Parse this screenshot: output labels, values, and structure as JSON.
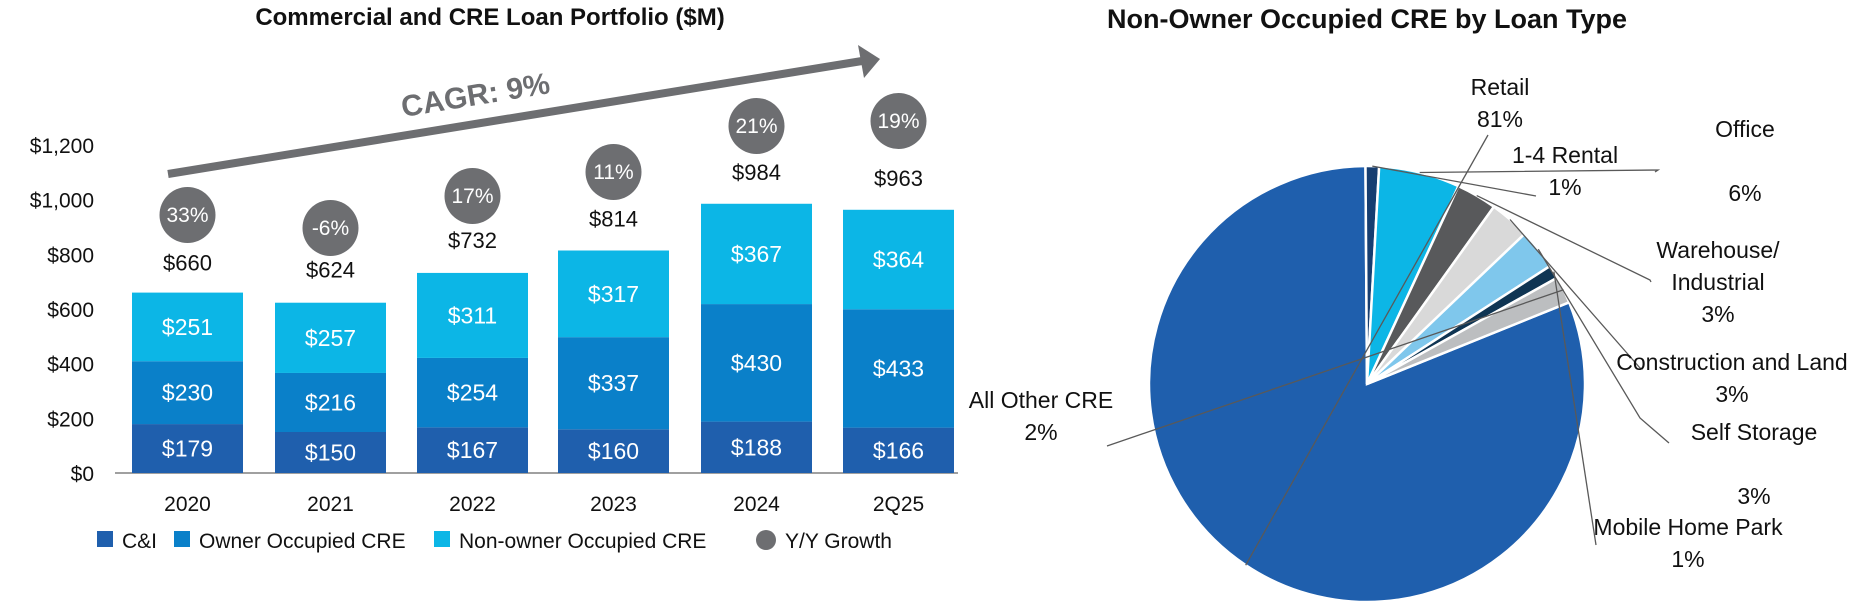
{
  "chart_data": [
    {
      "type": "bar",
      "stacked": true,
      "title": "Commercial and CRE Loan Portfolio ($M)",
      "annotation": "CAGR: 9%",
      "categories": [
        "2020",
        "2021",
        "2022",
        "2023",
        "2024",
        "2Q25"
      ],
      "series": [
        {
          "name": "C&I",
          "color": "#1f5fad",
          "values": [
            179,
            150,
            167,
            160,
            188,
            166
          ],
          "labels": [
            "$179",
            "$150",
            "$167",
            "$160",
            "$188",
            "$166"
          ]
        },
        {
          "name": "Owner Occupied CRE",
          "color": "#0a80c9",
          "values": [
            230,
            216,
            254,
            337,
            430,
            433
          ],
          "labels": [
            "$230",
            "$216",
            "$254",
            "$337",
            "$430",
            "$433"
          ]
        },
        {
          "name": "Non-owner Occupied CRE",
          "color": "#0cb6e6",
          "values": [
            251,
            257,
            311,
            317,
            367,
            364
          ],
          "labels": [
            "$251",
            "$257",
            "$311",
            "$317",
            "$367",
            "$364"
          ]
        }
      ],
      "totals": [
        660,
        624,
        732,
        814,
        984,
        963
      ],
      "total_labels": [
        "$660",
        "$624",
        "$732",
        "$814",
        "$984",
        "$963"
      ],
      "growth_series": {
        "name": "Y/Y Growth",
        "color": "#6d6e71",
        "labels": [
          "33%",
          "-6%",
          "17%",
          "11%",
          "21%",
          "19%"
        ]
      },
      "ylim": [
        0,
        1200
      ],
      "yticks": [
        0,
        200,
        400,
        600,
        800,
        1000,
        1200
      ],
      "ytick_labels": [
        "$0",
        "$200",
        "$400",
        "$600",
        "$800",
        "$1,000",
        "$1,200"
      ],
      "legend_position": "bottom"
    },
    {
      "type": "pie",
      "title": "Non-Owner Occupied CRE by Loan Type",
      "slices": [
        {
          "label": "Retail",
          "pct": "81%",
          "value": 81,
          "color": "#1f5fad"
        },
        {
          "label": "1-4 Rental",
          "pct": "1%",
          "value": 1,
          "color": "#163e71"
        },
        {
          "label": "Office",
          "pct": "6%",
          "value": 6,
          "color": "#0cb6e6"
        },
        {
          "label": "Warehouse/ Industrial",
          "pct": "3%",
          "value": 3,
          "color": "#58595b"
        },
        {
          "label": "Construction and Land",
          "pct": "3%",
          "value": 3,
          "color": "#d9d9d9"
        },
        {
          "label": "Self Storage",
          "pct": "3%",
          "value": 3,
          "color": "#7fc7ec"
        },
        {
          "label": "Mobile Home Park",
          "pct": "1%",
          "value": 1,
          "color": "#0f3553"
        },
        {
          "label": "All Other CRE",
          "pct": "2%",
          "value": 2,
          "color": "#bcbec0"
        }
      ]
    }
  ]
}
